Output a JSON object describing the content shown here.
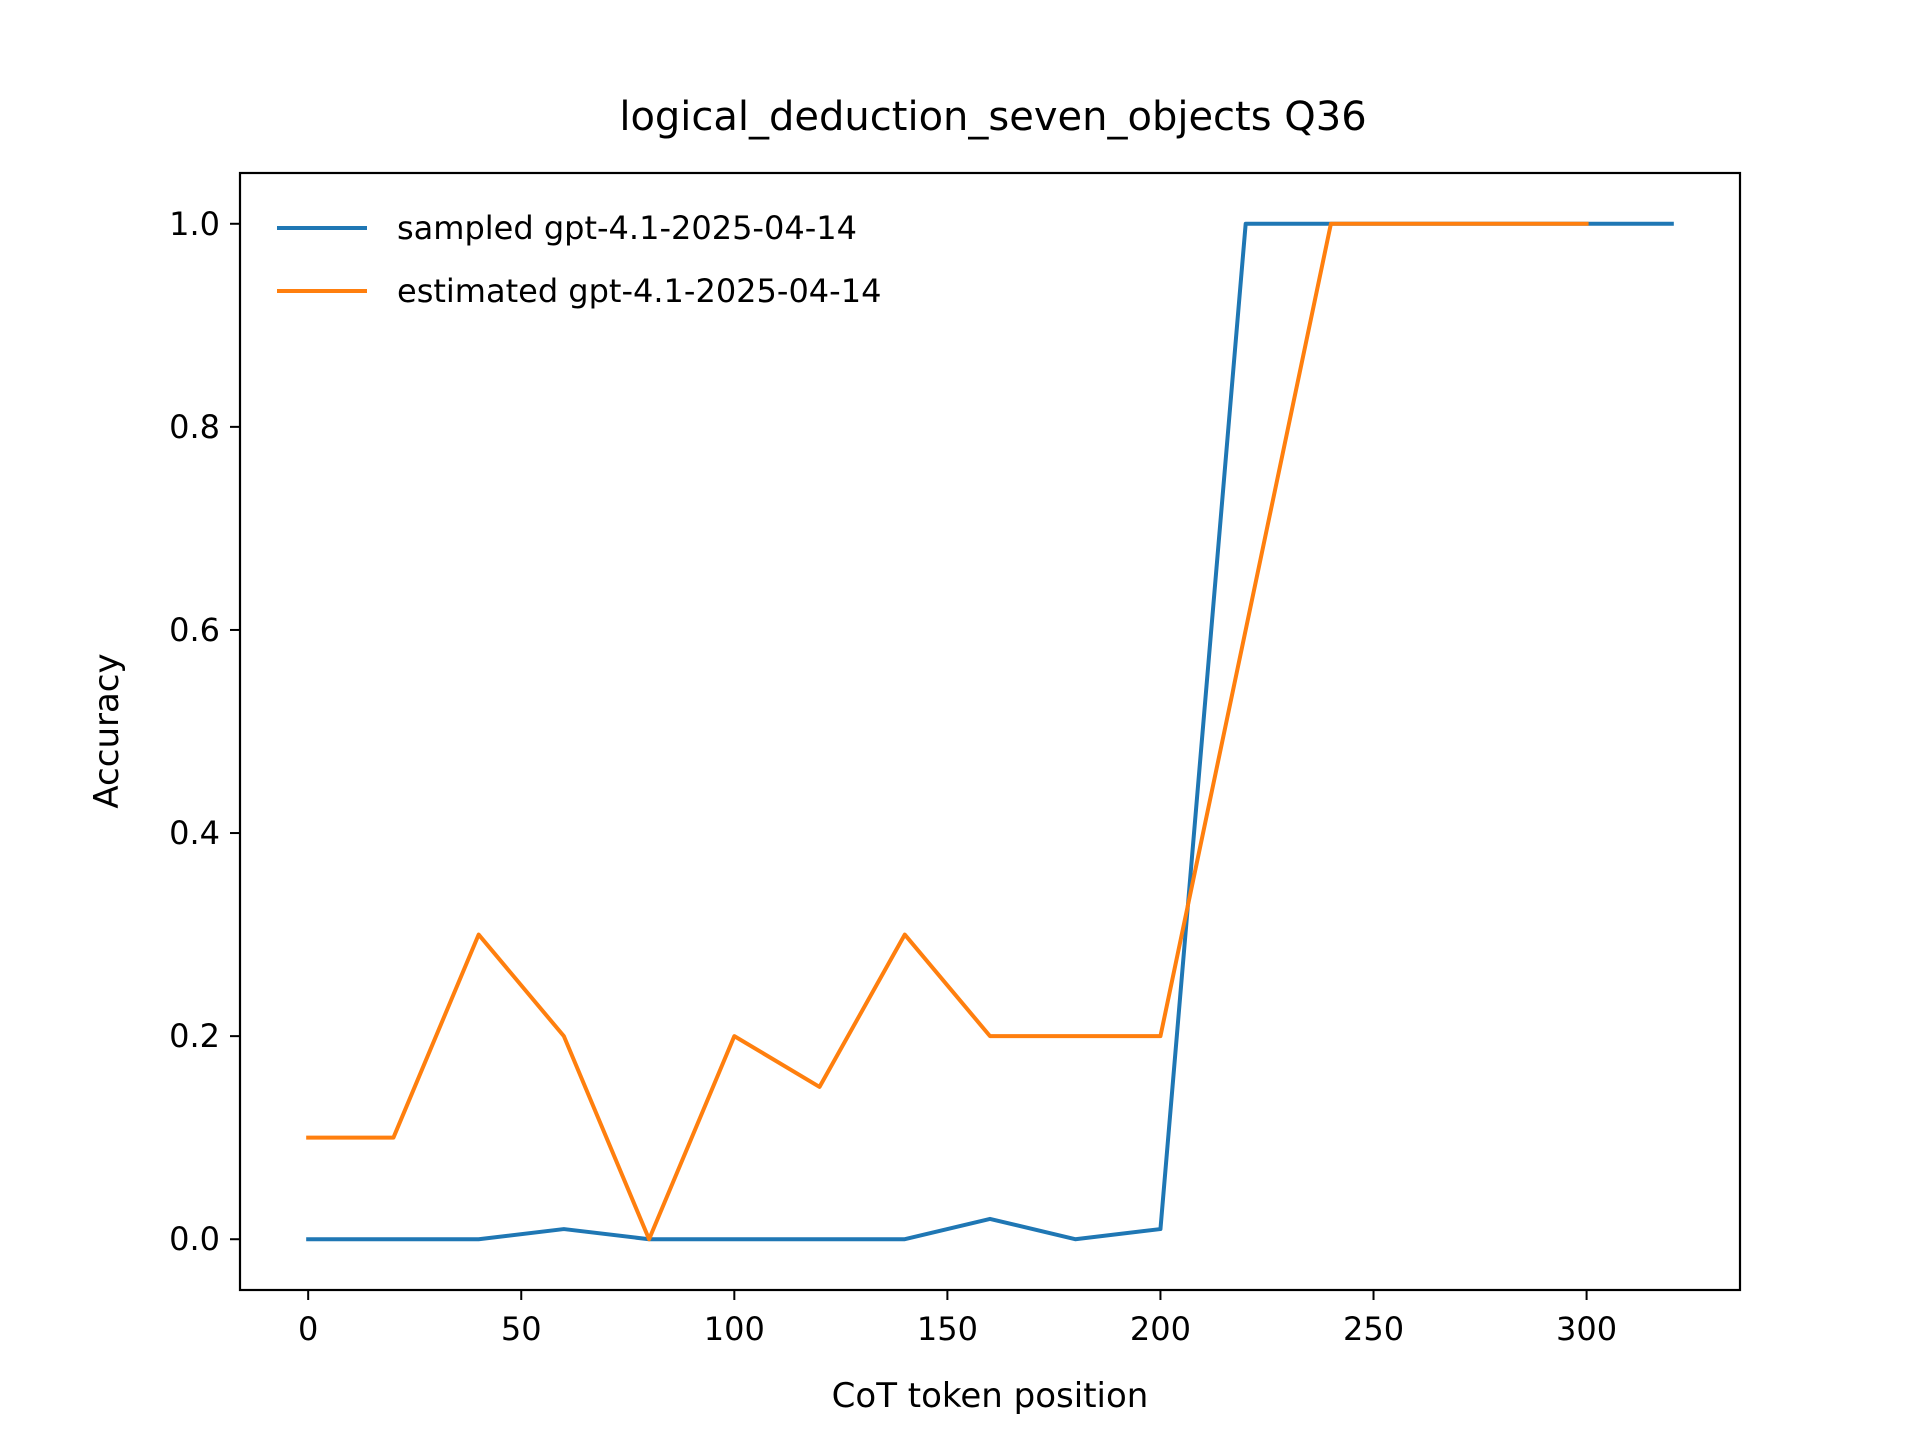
{
  "chart_data": {
    "type": "line",
    "title": "logical_deduction_seven_objects Q36",
    "xlabel": "CoT token position",
    "ylabel": "Accuracy",
    "xlim": [
      -16,
      336
    ],
    "ylim": [
      -0.05,
      1.05
    ],
    "xticks": [
      0,
      50,
      100,
      150,
      200,
      250,
      300
    ],
    "yticks": [
      0.0,
      0.2,
      0.4,
      0.6,
      0.8,
      1.0
    ],
    "xtick_labels": [
      "0",
      "50",
      "100",
      "150",
      "200",
      "250",
      "300"
    ],
    "ytick_labels": [
      "0.0",
      "0.2",
      "0.4",
      "0.6",
      "0.8",
      "1.0"
    ],
    "grid": false,
    "legend_position": "top-left",
    "series": [
      {
        "name": "sampled gpt-4.1-2025-04-14",
        "color": "#1f77b4",
        "x": [
          0,
          20,
          40,
          60,
          80,
          100,
          120,
          140,
          160,
          180,
          200,
          220,
          240,
          260,
          280,
          300,
          320
        ],
        "y": [
          0.0,
          0.0,
          0.0,
          0.01,
          0.0,
          0.0,
          0.0,
          0.0,
          0.02,
          0.0,
          0.01,
          1.0,
          1.0,
          1.0,
          1.0,
          1.0,
          1.0
        ]
      },
      {
        "name": "estimated gpt-4.1-2025-04-14",
        "color": "#ff7f0e",
        "x": [
          0,
          20,
          40,
          60,
          80,
          100,
          120,
          140,
          160,
          180,
          200,
          240,
          260,
          280,
          300
        ],
        "y": [
          0.1,
          0.1,
          0.3,
          0.2,
          0.0,
          0.2,
          0.15,
          0.3,
          0.2,
          0.2,
          0.2,
          1.0,
          1.0,
          1.0,
          1.0
        ]
      }
    ]
  }
}
